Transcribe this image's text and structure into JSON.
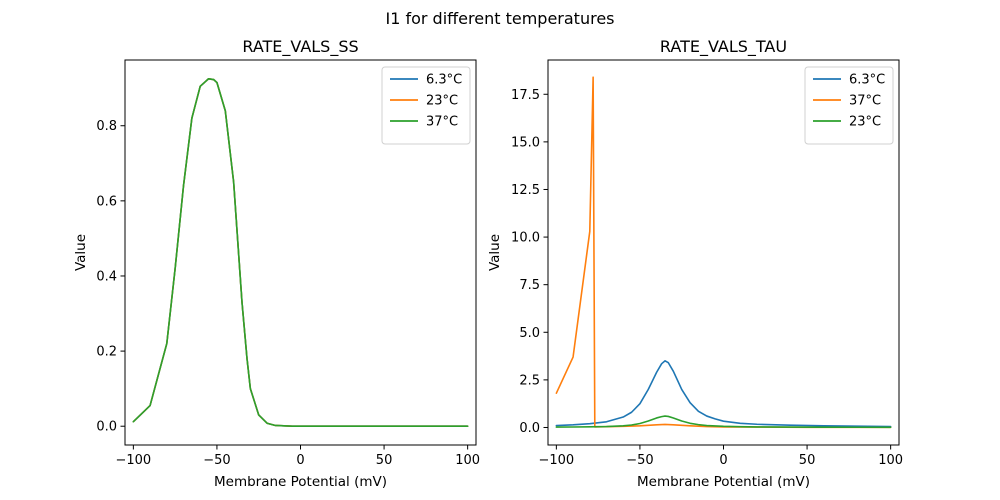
{
  "suptitle": "I1 for different temperatures",
  "chart_data": [
    {
      "type": "line",
      "title": "RATE_VALS_SS",
      "xlabel": "Membrane Potential (mV)",
      "ylabel": "Value",
      "xlim": [
        -105,
        105
      ],
      "ylim": [
        -0.05,
        0.975
      ],
      "xticks": [
        -100,
        -50,
        0,
        50,
        100
      ],
      "yticks": [
        0.0,
        0.2,
        0.4,
        0.6,
        0.8
      ],
      "xtick_labels": [
        "−100",
        "−50",
        "0",
        "50",
        "100"
      ],
      "ytick_labels": [
        "0.0",
        "0.2",
        "0.4",
        "0.6",
        "0.8"
      ],
      "legend_position": "top-right",
      "x": [
        -100,
        -90,
        -80,
        -75,
        -70,
        -65,
        -60,
        -55,
        -52,
        -50,
        -45,
        -40,
        -35,
        -32,
        -30,
        -25,
        -20,
        -15,
        -10,
        -5,
        0,
        10,
        20,
        50,
        100
      ],
      "series": [
        {
          "name": "6.3°C",
          "color": "#1f77b4",
          "values": [
            0.012,
            0.055,
            0.22,
            0.42,
            0.64,
            0.82,
            0.905,
            0.925,
            0.923,
            0.915,
            0.84,
            0.65,
            0.33,
            0.18,
            0.1,
            0.03,
            0.008,
            0.002,
            0.001,
            0.0,
            0.0,
            0.0,
            0.0,
            0.0,
            0.0
          ]
        },
        {
          "name": "23°C",
          "color": "#ff7f0e",
          "values": [
            0.012,
            0.055,
            0.22,
            0.42,
            0.64,
            0.82,
            0.905,
            0.925,
            0.923,
            0.915,
            0.84,
            0.65,
            0.33,
            0.18,
            0.1,
            0.03,
            0.008,
            0.002,
            0.001,
            0.0,
            0.0,
            0.0,
            0.0,
            0.0,
            0.0
          ]
        },
        {
          "name": "37°C",
          "color": "#2ca02c",
          "values": [
            0.012,
            0.055,
            0.22,
            0.42,
            0.64,
            0.82,
            0.905,
            0.925,
            0.923,
            0.915,
            0.84,
            0.65,
            0.33,
            0.18,
            0.1,
            0.03,
            0.008,
            0.002,
            0.001,
            0.0,
            0.0,
            0.0,
            0.0,
            0.0,
            0.0
          ]
        }
      ]
    },
    {
      "type": "line",
      "title": "RATE_VALS_TAU",
      "xlabel": "Membrane Potential (mV)",
      "ylabel": "Value",
      "xlim": [
        -105,
        105
      ],
      "ylim": [
        -0.92,
        19.3
      ],
      "xticks": [
        -100,
        -50,
        0,
        50,
        100
      ],
      "yticks": [
        0.0,
        2.5,
        5.0,
        7.5,
        10.0,
        12.5,
        15.0,
        17.5
      ],
      "xtick_labels": [
        "−100",
        "−50",
        "0",
        "50",
        "100"
      ],
      "ytick_labels": [
        "0.0",
        "2.5",
        "5.0",
        "7.5",
        "10.0",
        "12.5",
        "15.0",
        "17.5"
      ],
      "legend_position": "top-right",
      "series": [
        {
          "name": "6.3°C",
          "color": "#1f77b4",
          "x": [
            -100,
            -90,
            -80,
            -70,
            -60,
            -55,
            -50,
            -45,
            -40,
            -37,
            -35,
            -33,
            -30,
            -25,
            -20,
            -15,
            -10,
            -5,
            0,
            10,
            20,
            40,
            60,
            80,
            100
          ],
          "values": [
            0.1,
            0.14,
            0.2,
            0.3,
            0.55,
            0.8,
            1.25,
            2.0,
            2.9,
            3.35,
            3.5,
            3.4,
            2.95,
            2.0,
            1.3,
            0.85,
            0.6,
            0.45,
            0.33,
            0.22,
            0.17,
            0.12,
            0.09,
            0.07,
            0.05
          ]
        },
        {
          "name": "37°C",
          "color": "#ff7f0e",
          "x": [
            -100,
            -90,
            -80,
            -78,
            -77,
            -70,
            -60,
            -50,
            -40,
            -35,
            -30,
            -20,
            -10,
            0,
            20,
            50,
            100
          ],
          "values": [
            1.8,
            3.7,
            10.3,
            18.4,
            0.03,
            0.04,
            0.06,
            0.09,
            0.14,
            0.16,
            0.14,
            0.09,
            0.05,
            0.03,
            0.02,
            0.01,
            0.01
          ]
        },
        {
          "name": "23°C",
          "color": "#2ca02c",
          "x": [
            -100,
            -90,
            -80,
            -70,
            -60,
            -55,
            -50,
            -45,
            -40,
            -37,
            -35,
            -33,
            -30,
            -25,
            -20,
            -15,
            -10,
            -5,
            0,
            10,
            20,
            40,
            60,
            80,
            100
          ],
          "values": [
            0.02,
            0.025,
            0.035,
            0.05,
            0.09,
            0.13,
            0.21,
            0.34,
            0.5,
            0.57,
            0.6,
            0.58,
            0.5,
            0.34,
            0.22,
            0.15,
            0.1,
            0.08,
            0.06,
            0.04,
            0.03,
            0.02,
            0.015,
            0.012,
            0.01
          ]
        }
      ]
    }
  ]
}
